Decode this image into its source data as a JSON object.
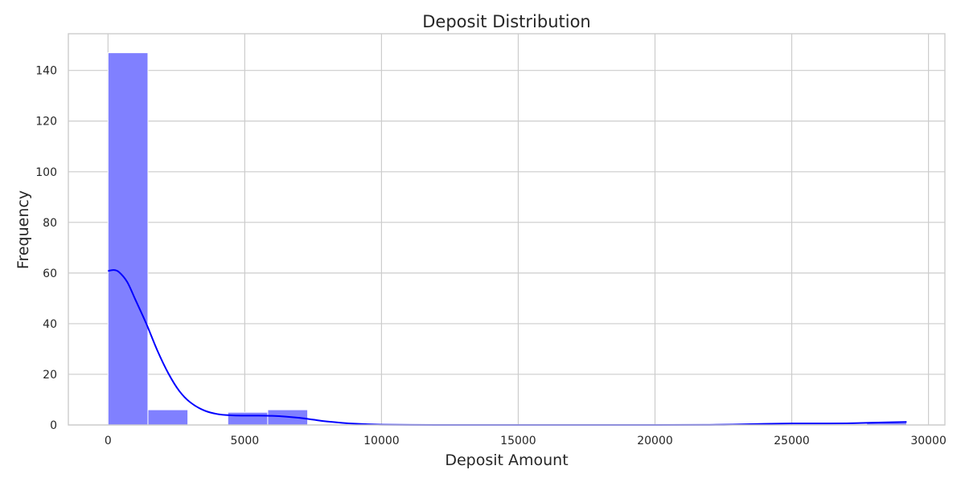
{
  "chart_data": {
    "type": "bar",
    "title": "Deposit Distribution",
    "xlabel": "Deposit Amount",
    "ylabel": "Frequency",
    "xlim": [
      -1450,
      30600
    ],
    "ylim": [
      0,
      154.5
    ],
    "xticks": [
      0,
      5000,
      10000,
      15000,
      20000,
      25000,
      30000
    ],
    "yticks": [
      0,
      20,
      40,
      60,
      80,
      100,
      120,
      140
    ],
    "grid": true,
    "bins": [
      {
        "x0": 0,
        "x1": 1460,
        "count": 147
      },
      {
        "x0": 1460,
        "x1": 2920,
        "count": 6
      },
      {
        "x0": 2920,
        "x1": 4380,
        "count": 0
      },
      {
        "x0": 4380,
        "x1": 5840,
        "count": 5
      },
      {
        "x0": 5840,
        "x1": 7300,
        "count": 6
      },
      {
        "x0": 7300,
        "x1": 8760,
        "count": 0
      },
      {
        "x0": 8760,
        "x1": 10220,
        "count": 0
      },
      {
        "x0": 10220,
        "x1": 11680,
        "count": 0
      },
      {
        "x0": 11680,
        "x1": 13140,
        "count": 0
      },
      {
        "x0": 13140,
        "x1": 14600,
        "count": 0
      },
      {
        "x0": 14600,
        "x1": 16060,
        "count": 0
      },
      {
        "x0": 16060,
        "x1": 17520,
        "count": 0
      },
      {
        "x0": 17520,
        "x1": 18980,
        "count": 0
      },
      {
        "x0": 18980,
        "x1": 20440,
        "count": 0
      },
      {
        "x0": 20440,
        "x1": 21900,
        "count": 0
      },
      {
        "x0": 21900,
        "x1": 23360,
        "count": 0
      },
      {
        "x0": 23360,
        "x1": 24820,
        "count": 0
      },
      {
        "x0": 24820,
        "x1": 26280,
        "count": 0
      },
      {
        "x0": 26280,
        "x1": 27740,
        "count": 0
      },
      {
        "x0": 27740,
        "x1": 29200,
        "count": 1
      }
    ],
    "kde": {
      "x": [
        0,
        200,
        400,
        700,
        1000,
        1400,
        1800,
        2200,
        2600,
        3000,
        3500,
        4000,
        4500,
        5000,
        5500,
        6000,
        6500,
        7000,
        7500,
        8000,
        9000,
        10000,
        12000,
        15000,
        20000,
        22000,
        23000,
        24000,
        25000,
        26000,
        27000,
        28000,
        29200
      ],
      "y": [
        60.8,
        61.2,
        60.4,
        56.5,
        49.5,
        40.0,
        29.5,
        20.5,
        13.5,
        9.0,
        5.8,
        4.3,
        3.8,
        3.7,
        3.7,
        3.6,
        3.3,
        2.8,
        2.1,
        1.4,
        0.5,
        0.1,
        0.0,
        0.0,
        0.0,
        0.05,
        0.2,
        0.45,
        0.6,
        0.6,
        0.65,
        0.9,
        1.2
      ]
    },
    "colors": {
      "bar_fill": "#8080ff",
      "bar_stroke": "#ffffff",
      "kde_line": "#0000ff",
      "grid": "#cccccc",
      "spine": "#cccccc",
      "text": "#262626"
    }
  }
}
